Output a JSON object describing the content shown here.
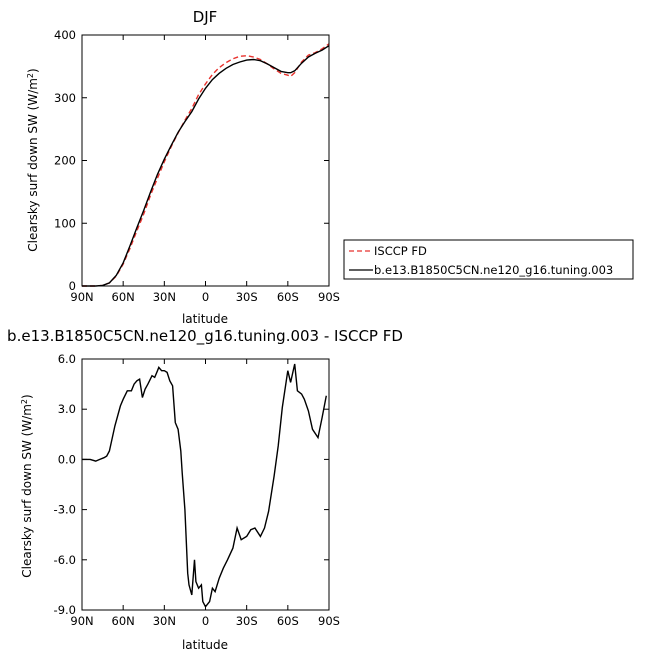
{
  "chart_data": [
    {
      "type": "line",
      "title": "DJF",
      "xlabel": "latitude",
      "ylabel": "Clearsky surf down SW (W/m²)",
      "x_domain": [
        90,
        -90
      ],
      "x_ticks": [
        90,
        60,
        30,
        0,
        -30,
        -60,
        -90
      ],
      "x_tick_labels": [
        "90N",
        "60N",
        "30N",
        "0",
        "30S",
        "60S",
        "90S"
      ],
      "ylim": [
        0,
        400
      ],
      "y_ticks": [
        0,
        100,
        200,
        300,
        400
      ],
      "y_tick_labels": [
        "0",
        "100",
        "200",
        "300",
        "400"
      ],
      "legend_position": "right-bottom",
      "x": [
        90,
        85,
        80,
        75,
        70,
        65,
        60,
        55,
        50,
        45,
        40,
        35,
        30,
        25,
        20,
        15,
        10,
        5,
        0,
        -5,
        -10,
        -15,
        -20,
        -25,
        -30,
        -35,
        -40,
        -45,
        -50,
        -55,
        -60,
        -62,
        -65,
        -70,
        -75,
        -80,
        -85,
        -90
      ],
      "series": [
        {
          "name": "ISCCP FD",
          "color": "#e8322d",
          "dash": "dashed",
          "values": [
            0,
            0,
            0,
            1,
            5,
            16,
            35,
            60,
            88,
            115,
            145,
            172,
            198,
            222,
            244,
            264,
            283,
            305,
            322,
            337,
            348,
            356,
            362,
            366,
            367,
            365,
            361,
            354,
            346,
            339,
            336,
            334,
            340,
            357,
            368,
            372,
            378,
            386
          ]
        },
        {
          "name": "b.e13.B1850C5CN.ne120_g16.tuning.003",
          "color": "#000000",
          "dash": "solid",
          "values": [
            0,
            0,
            0,
            1,
            5,
            17,
            37,
            64,
            93,
            121,
            150,
            178,
            202,
            224,
            245,
            262,
            278,
            298,
            315,
            329,
            339,
            347,
            353,
            357,
            360,
            361,
            359,
            354,
            348,
            342,
            340,
            340,
            343,
            355,
            365,
            371,
            376,
            383
          ]
        }
      ]
    },
    {
      "type": "line",
      "title": "b.e13.B1850C5CN.ne120_g16.tuning.003 - ISCCP FD",
      "xlabel": "latitude",
      "ylabel": "Clearsky surf down SW (W/m²)",
      "x_domain": [
        90,
        -90
      ],
      "x_ticks": [
        90,
        60,
        30,
        0,
        -30,
        -60,
        -90
      ],
      "x_tick_labels": [
        "90N",
        "60N",
        "30N",
        "0",
        "30S",
        "60S",
        "90S"
      ],
      "ylim": [
        -9,
        6
      ],
      "y_ticks": [
        -9,
        -6,
        -3,
        0,
        3,
        6
      ],
      "y_tick_labels": [
        "-9.0",
        "-6.0",
        "-3.0",
        "0.0",
        "3.0",
        "6.0"
      ],
      "x": [
        90,
        84,
        80,
        77,
        74,
        72,
        70,
        66,
        62,
        60,
        57,
        54,
        52,
        50,
        48,
        46,
        44,
        42,
        39,
        37,
        35,
        34,
        32,
        30,
        28,
        26,
        24,
        22,
        20,
        18,
        17,
        15,
        13,
        12,
        10,
        8,
        7,
        5,
        3,
        2,
        0,
        -3,
        -5,
        -7,
        -10,
        -13,
        -16,
        -20,
        -23,
        -26,
        -30,
        -33,
        -36,
        -40,
        -43,
        -46,
        -50,
        -53,
        -56,
        -60,
        -62,
        -65,
        -67,
        -70,
        -72,
        -75,
        -78,
        -82,
        -85,
        -88
      ],
      "series": [
        {
          "name": "b.e13.B1850C5CN.ne120_g16.tuning.003 - ISCCP FD",
          "color": "#000000",
          "dash": "solid",
          "values": [
            0,
            0,
            -0.1,
            0,
            0.1,
            0.2,
            0.5,
            2.0,
            3.2,
            3.6,
            4.1,
            4.1,
            4.5,
            4.7,
            4.8,
            3.7,
            4.2,
            4.5,
            5.0,
            4.9,
            5.3,
            5.5,
            5.3,
            5.3,
            5.2,
            4.7,
            4.4,
            2.2,
            1.8,
            0.5,
            -0.8,
            -3.0,
            -6.8,
            -7.5,
            -8.1,
            -6.0,
            -7.3,
            -7.7,
            -7.5,
            -8.5,
            -8.8,
            -8.5,
            -7.7,
            -7.9,
            -7.1,
            -6.5,
            -6.0,
            -5.3,
            -4.1,
            -4.8,
            -4.6,
            -4.2,
            -4.1,
            -4.6,
            -4.1,
            -3.1,
            -1.0,
            0.8,
            3.1,
            5.3,
            4.6,
            5.7,
            4.1,
            3.9,
            3.6,
            2.9,
            1.8,
            1.3,
            2.5,
            3.8
          ]
        }
      ]
    }
  ]
}
